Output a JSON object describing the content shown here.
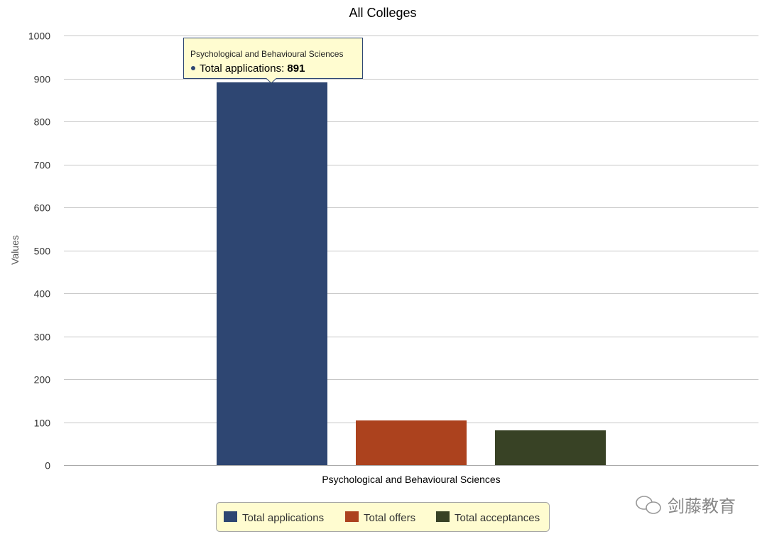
{
  "chart_data": {
    "type": "bar",
    "title": "All Colleges",
    "ylabel": "Values",
    "xlabel": "",
    "ylim": [
      0,
      1000
    ],
    "yticks": [
      0,
      100,
      200,
      300,
      400,
      500,
      600,
      700,
      800,
      900,
      1000
    ],
    "categories": [
      "Psychological and Behavioural Sciences"
    ],
    "series": [
      {
        "name": "Total applications",
        "values": [
          891
        ],
        "color": "#2e4672"
      },
      {
        "name": "Total offers",
        "values": [
          104
        ],
        "color": "#ac421e"
      },
      {
        "name": "Total acceptances",
        "values": [
          81
        ],
        "color": "#384225"
      }
    ],
    "grid": true,
    "legend_position": "bottom-center",
    "tooltip": {
      "title": "Psychological and Behavioural Sciences",
      "series_label": "Total applications",
      "value": "891"
    }
  },
  "watermark": {
    "icon": "wechat-icon",
    "text": "剑藤教育"
  }
}
